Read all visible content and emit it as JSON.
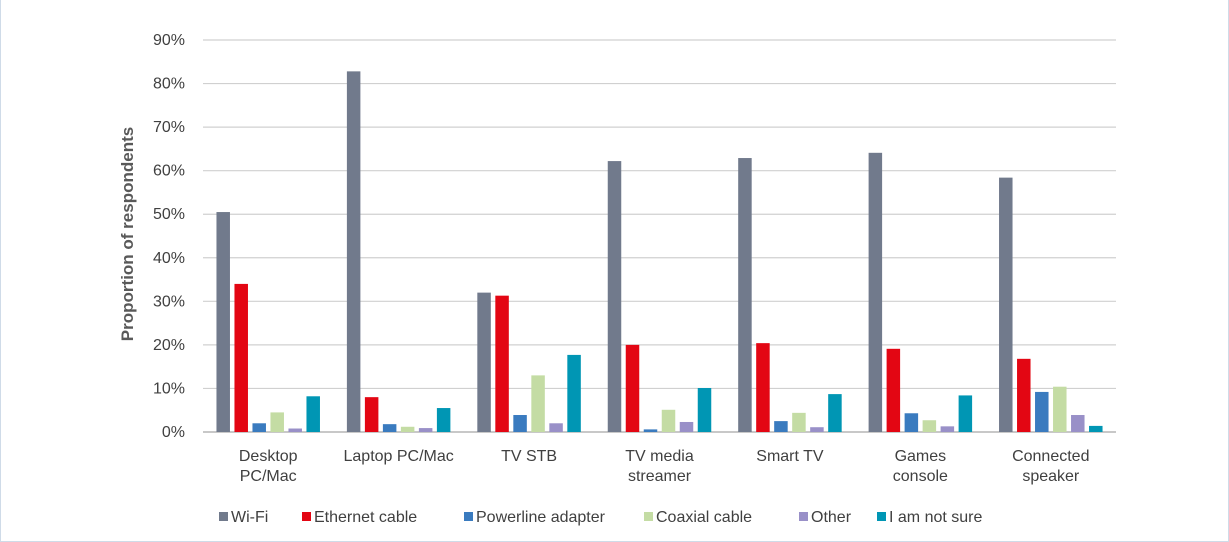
{
  "chart_data": {
    "type": "bar",
    "ylabel": "Proportion of respondents",
    "xlabel": "",
    "ylim": [
      0,
      90
    ],
    "y_ticks": [
      0,
      10,
      20,
      30,
      40,
      50,
      60,
      70,
      80,
      90
    ],
    "y_tick_labels": [
      "0%",
      "10%",
      "20%",
      "30%",
      "40%",
      "50%",
      "60%",
      "70%",
      "80%",
      "90%"
    ],
    "grid": true,
    "legend_position": "bottom",
    "categories": [
      [
        "Desktop",
        "PC/Mac"
      ],
      [
        "Laptop PC/Mac"
      ],
      [
        "TV STB"
      ],
      [
        "TV media",
        "streamer"
      ],
      [
        "Smart TV"
      ],
      [
        "Games",
        "console"
      ],
      [
        "Connected",
        "speaker"
      ]
    ],
    "series": [
      {
        "name": "Wi-Fi",
        "color": "#717a8c",
        "values": [
          50.5,
          82.8,
          32.0,
          62.2,
          62.9,
          64.1,
          58.4
        ]
      },
      {
        "name": "Ethernet cable",
        "color": "#e30613",
        "values": [
          34.0,
          8.0,
          31.3,
          20.0,
          20.4,
          19.1,
          16.8
        ]
      },
      {
        "name": "Powerline adapter",
        "color": "#3a7bbf",
        "values": [
          2.0,
          1.8,
          3.9,
          0.6,
          2.5,
          4.3,
          9.2
        ]
      },
      {
        "name": "Coaxial cable",
        "color": "#c4dca4",
        "values": [
          4.5,
          1.2,
          13.0,
          5.1,
          4.4,
          2.7,
          10.4
        ]
      },
      {
        "name": "Other",
        "color": "#9990c8",
        "values": [
          0.8,
          0.9,
          2.0,
          2.3,
          1.1,
          1.3,
          3.9
        ]
      },
      {
        "name": "I am not sure",
        "color": "#0096b4",
        "values": [
          8.2,
          5.5,
          17.7,
          10.1,
          8.7,
          8.4,
          1.4
        ]
      }
    ]
  }
}
